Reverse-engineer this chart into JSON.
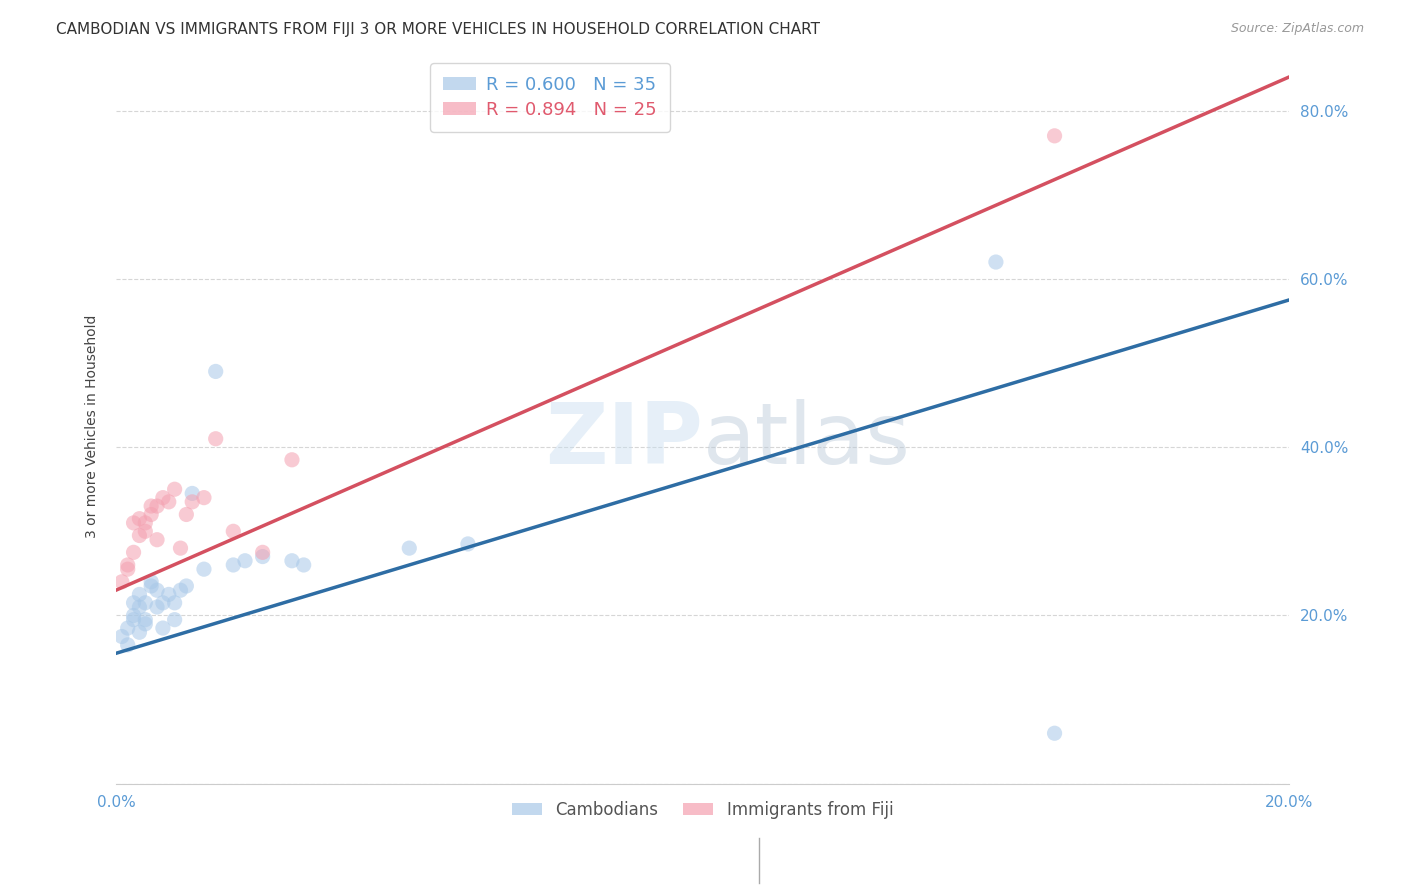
{
  "title": "CAMBODIAN VS IMMIGRANTS FROM FIJI 3 OR MORE VEHICLES IN HOUSEHOLD CORRELATION CHART",
  "source": "Source: ZipAtlas.com",
  "tick_color": "#5b9bd5",
  "ylabel": "3 or more Vehicles in Household",
  "watermark": "ZIPatlas",
  "legend_top": [
    {
      "label": "R = 0.600   N = 35",
      "color": "#5b9bd5"
    },
    {
      "label": "R = 0.894   N = 25",
      "color": "#e05a6e"
    }
  ],
  "legend_labels_bottom": [
    "Cambodians",
    "Immigrants from Fiji"
  ],
  "blue_color": "#a8c8e8",
  "pink_color": "#f4a0b0",
  "blue_line_color": "#2e6da4",
  "pink_line_color": "#d45060",
  "xmin": 0.0,
  "xmax": 0.2,
  "ymin": 0.0,
  "ymax": 0.85,
  "ytick_values": [
    0.0,
    0.2,
    0.4,
    0.6,
    0.8
  ],
  "ytick_labels": [
    "",
    "20.0%",
    "40.0%",
    "60.0%",
    "80.0%"
  ],
  "blue_scatter_x": [
    0.001,
    0.002,
    0.002,
    0.003,
    0.003,
    0.003,
    0.004,
    0.004,
    0.004,
    0.005,
    0.005,
    0.005,
    0.006,
    0.006,
    0.007,
    0.007,
    0.008,
    0.008,
    0.009,
    0.01,
    0.01,
    0.011,
    0.012,
    0.013,
    0.015,
    0.017,
    0.02,
    0.022,
    0.025,
    0.03,
    0.032,
    0.05,
    0.06,
    0.15,
    0.16
  ],
  "blue_scatter_y": [
    0.175,
    0.165,
    0.185,
    0.2,
    0.215,
    0.195,
    0.21,
    0.18,
    0.225,
    0.19,
    0.195,
    0.215,
    0.235,
    0.24,
    0.21,
    0.23,
    0.215,
    0.185,
    0.225,
    0.215,
    0.195,
    0.23,
    0.235,
    0.345,
    0.255,
    0.49,
    0.26,
    0.265,
    0.27,
    0.265,
    0.26,
    0.28,
    0.285,
    0.62,
    0.06
  ],
  "pink_scatter_x": [
    0.001,
    0.002,
    0.002,
    0.003,
    0.003,
    0.004,
    0.004,
    0.005,
    0.005,
    0.006,
    0.006,
    0.007,
    0.007,
    0.008,
    0.009,
    0.01,
    0.011,
    0.012,
    0.013,
    0.015,
    0.017,
    0.02,
    0.025,
    0.03,
    0.16
  ],
  "pink_scatter_y": [
    0.24,
    0.26,
    0.255,
    0.275,
    0.31,
    0.295,
    0.315,
    0.31,
    0.3,
    0.33,
    0.32,
    0.33,
    0.29,
    0.34,
    0.335,
    0.35,
    0.28,
    0.32,
    0.335,
    0.34,
    0.41,
    0.3,
    0.275,
    0.385,
    0.77
  ],
  "blue_line_x": [
    0.0,
    0.2
  ],
  "blue_line_y": [
    0.155,
    0.575
  ],
  "pink_line_x": [
    0.0,
    0.2
  ],
  "pink_line_y": [
    0.23,
    0.84
  ],
  "bg_color": "#ffffff",
  "grid_color": "#cccccc",
  "title_fontsize": 11,
  "axis_label_fontsize": 10,
  "tick_fontsize": 11,
  "scatter_size": 120
}
